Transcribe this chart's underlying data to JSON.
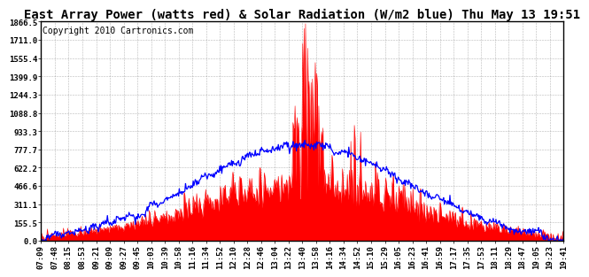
{
  "title": "East Array Power (watts red) & Solar Radiation (W/m2 blue) Thu May 13 19:51",
  "copyright": "Copyright 2010 Cartronics.com",
  "bg_color": "#ffffff",
  "plot_bg_color": "#ffffff",
  "grid_color": "#888888",
  "y_ticks": [
    0.0,
    155.5,
    311.1,
    466.6,
    622.2,
    777.7,
    933.3,
    1088.8,
    1244.3,
    1399.9,
    1555.4,
    1711.0,
    1866.5
  ],
  "y_max": 1866.5,
  "y_min": 0.0,
  "x_tick_labels": [
    "07:09",
    "07:48",
    "08:15",
    "08:53",
    "09:21",
    "09:09",
    "09:27",
    "09:45",
    "10:03",
    "10:39",
    "10:58",
    "11:16",
    "11:34",
    "11:52",
    "12:10",
    "12:28",
    "12:46",
    "13:04",
    "13:22",
    "13:40",
    "13:58",
    "14:16",
    "14:34",
    "14:52",
    "15:10",
    "15:29",
    "16:05",
    "16:23",
    "16:41",
    "16:59",
    "17:17",
    "17:35",
    "17:53",
    "18:11",
    "18:29",
    "18:47",
    "19:05",
    "19:23",
    "19:41"
  ],
  "red_color": "#ff0000",
  "blue_color": "#0000ff",
  "title_fontsize": 10,
  "tick_fontsize": 6.5,
  "copyright_fontsize": 7
}
